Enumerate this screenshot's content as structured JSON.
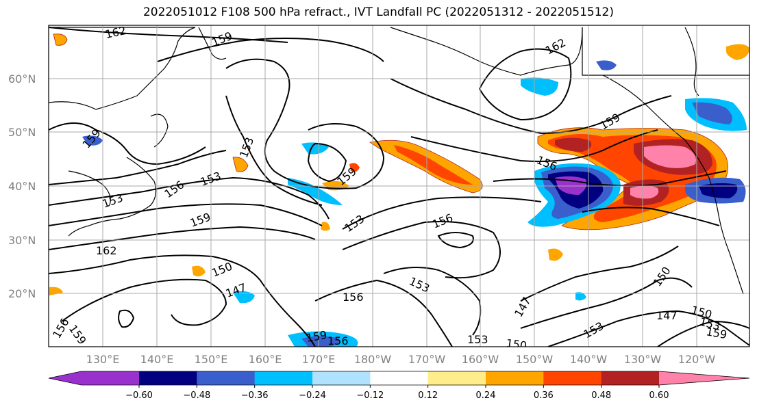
{
  "title": "2022051012 F108 500 hPa refract., IVT Landfall PC (2022051312 - 2022051512)",
  "latitude_labels": [
    "60°N",
    "50°N",
    "40°N",
    "30°N",
    "20°N"
  ],
  "longitude_labels": [
    "130°E",
    "140°E",
    "150°E",
    "160°E",
    "170°E",
    "180°W",
    "170°W",
    "160°W",
    "150°W",
    "140°W",
    "130°W",
    "120°W"
  ],
  "colorbar": {
    "ticks": [
      "−0.60",
      "−0.48",
      "−0.36",
      "−0.24",
      "−0.12",
      "0.12",
      "0.24",
      "0.36",
      "0.48",
      "0.60"
    ],
    "colors": [
      "#9932cc",
      "#000080",
      "#3a5fcd",
      "#00bfff",
      "#b0e2ff",
      "#ffffff",
      "#ffec8b",
      "#ffa500",
      "#ff4500",
      "#b22222",
      "#ff82ab"
    ]
  },
  "contour_labels": [
    "162",
    "159",
    "162",
    "159",
    "159",
    "153",
    "159",
    "156",
    "153",
    "156",
    "159",
    "153",
    "156",
    "162",
    "150",
    "147",
    "153",
    "156",
    "153",
    "147",
    "150",
    "153",
    "153",
    "150",
    "147",
    "150",
    "153",
    "159",
    "156",
    "159",
    "156",
    "159"
  ]
}
